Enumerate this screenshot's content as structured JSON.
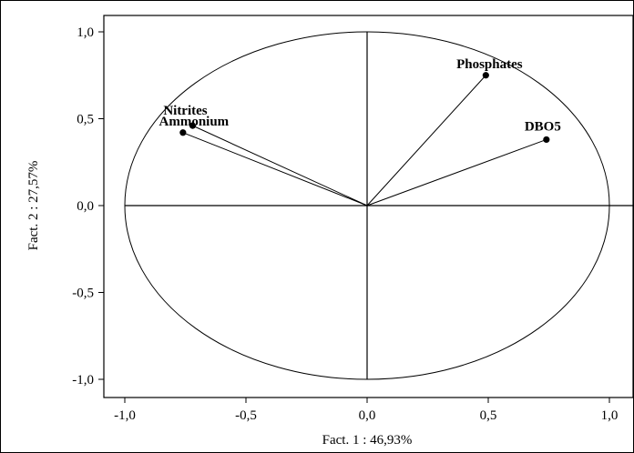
{
  "chart_data": {
    "type": "scatter",
    "subtype": "correlation-circle",
    "title": "",
    "xlabel": "Fact. 1  : 46,93%",
    "ylabel": "Fact. 2 : 27,57%",
    "xlim": [
      -1.1,
      1.1
    ],
    "ylim": [
      -1.1,
      1.1
    ],
    "x_ticks": [
      "-1,0",
      "-0,5",
      "0,0",
      "0,5",
      "1,0"
    ],
    "y_ticks": [
      "1,0",
      "0,5",
      "0,0",
      "-0,5",
      "-1,0"
    ],
    "grid": false,
    "legend": "none",
    "unit_circle": true,
    "points": [
      {
        "label": "Phosphates",
        "x": 0.49,
        "y": 0.75
      },
      {
        "label": "DBO5",
        "x": 0.74,
        "y": 0.38
      },
      {
        "label": "Nitrites",
        "x": -0.72,
        "y": 0.46
      },
      {
        "label": "Ammonium",
        "x": -0.76,
        "y": 0.42
      }
    ],
    "colors": {
      "line": "#000000",
      "point": "#000000"
    }
  }
}
